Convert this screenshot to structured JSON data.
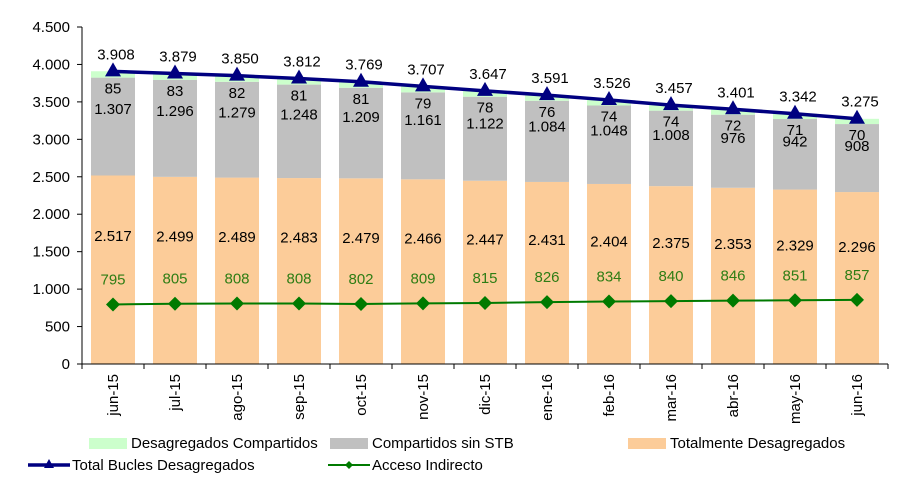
{
  "chart_data": {
    "type": "bar",
    "stacked": true,
    "title": "",
    "xlabel": "",
    "ylabel": "",
    "ylim": [
      0,
      4500
    ],
    "yticks": [
      "0",
      "500",
      "1.000",
      "1.500",
      "2.000",
      "2.500",
      "3.000",
      "3.500",
      "4.000",
      "4.500"
    ],
    "ytick_values": [
      0,
      500,
      1000,
      1500,
      2000,
      2500,
      3000,
      3500,
      4000,
      4500
    ],
    "grid": false,
    "legend_position": "bottom",
    "categories": [
      "jun-15",
      "jul-15",
      "ago-15",
      "sep-15",
      "oct-15",
      "nov-15",
      "dic-15",
      "ene-16",
      "feb-16",
      "mar-16",
      "abr-16",
      "may-16",
      "jun-16"
    ],
    "series": [
      {
        "name": "Totalmente Desagregados",
        "kind": "bar",
        "color": "#FCCC99",
        "label_color": "#000000",
        "values": [
          2517,
          2499,
          2489,
          2483,
          2479,
          2466,
          2447,
          2431,
          2404,
          2375,
          2353,
          2329,
          2296
        ],
        "labels": [
          "2.517",
          "2.499",
          "2.489",
          "2.483",
          "2.479",
          "2.466",
          "2.447",
          "2.431",
          "2.404",
          "2.375",
          "2.353",
          "2.329",
          "2.296"
        ]
      },
      {
        "name": "Compartidos sin STB",
        "kind": "bar",
        "color": "#C0C0C0",
        "label_color": "#000000",
        "values": [
          1307,
          1296,
          1279,
          1248,
          1209,
          1161,
          1122,
          1084,
          1048,
          1008,
          976,
          942,
          908
        ],
        "labels": [
          "1.307",
          "1.296",
          "1.279",
          "1.248",
          "1.209",
          "1.161",
          "1.122",
          "1.084",
          "1.048",
          "1.008",
          "976",
          "942",
          "908"
        ]
      },
      {
        "name": "Desagregados Compartidos",
        "kind": "bar",
        "color": "#CCFFCC",
        "label_color": "#000000",
        "values": [
          85,
          83,
          82,
          81,
          81,
          79,
          78,
          76,
          74,
          74,
          72,
          71,
          70
        ],
        "labels": [
          "85",
          "83",
          "82",
          "81",
          "81",
          "79",
          "78",
          "76",
          "74",
          "74",
          "72",
          "71",
          "70"
        ]
      },
      {
        "name": "Total Bucles Desagregados",
        "kind": "line",
        "marker": "triangle",
        "color": "#000080",
        "label_color": "#000000",
        "values": [
          3908,
          3879,
          3850,
          3812,
          3769,
          3707,
          3647,
          3591,
          3526,
          3457,
          3401,
          3342,
          3275
        ],
        "labels": [
          "3.908",
          "3.879",
          "3.850",
          "3.812",
          "3.769",
          "3.707",
          "3.647",
          "3.591",
          "3.526",
          "3.457",
          "3.401",
          "3.342",
          "3.275"
        ]
      },
      {
        "name": "Acceso Indirecto",
        "kind": "line",
        "marker": "diamond",
        "color": "#007A00",
        "label_color": "#2E7D14",
        "values": [
          795,
          805,
          808,
          808,
          802,
          809,
          815,
          826,
          834,
          840,
          846,
          851,
          857
        ],
        "labels": [
          "795",
          "805",
          "808",
          "808",
          "802",
          "809",
          "815",
          "826",
          "834",
          "840",
          "846",
          "851",
          "857"
        ]
      }
    ]
  },
  "legend": {
    "items": [
      {
        "label": "Desagregados Compartidos",
        "type": "swatch",
        "color": "#CCFFCC"
      },
      {
        "label": "Compartidos sin STB",
        "type": "swatch",
        "color": "#C0C0C0"
      },
      {
        "label": "Totalmente Desagregados",
        "type": "swatch",
        "color": "#FCCC99"
      },
      {
        "label": "Total Bucles Desagregados",
        "type": "line-triangle",
        "color": "#000080"
      },
      {
        "label": "Acceso Indirecto",
        "type": "line-diamond",
        "color": "#007A00"
      }
    ]
  }
}
